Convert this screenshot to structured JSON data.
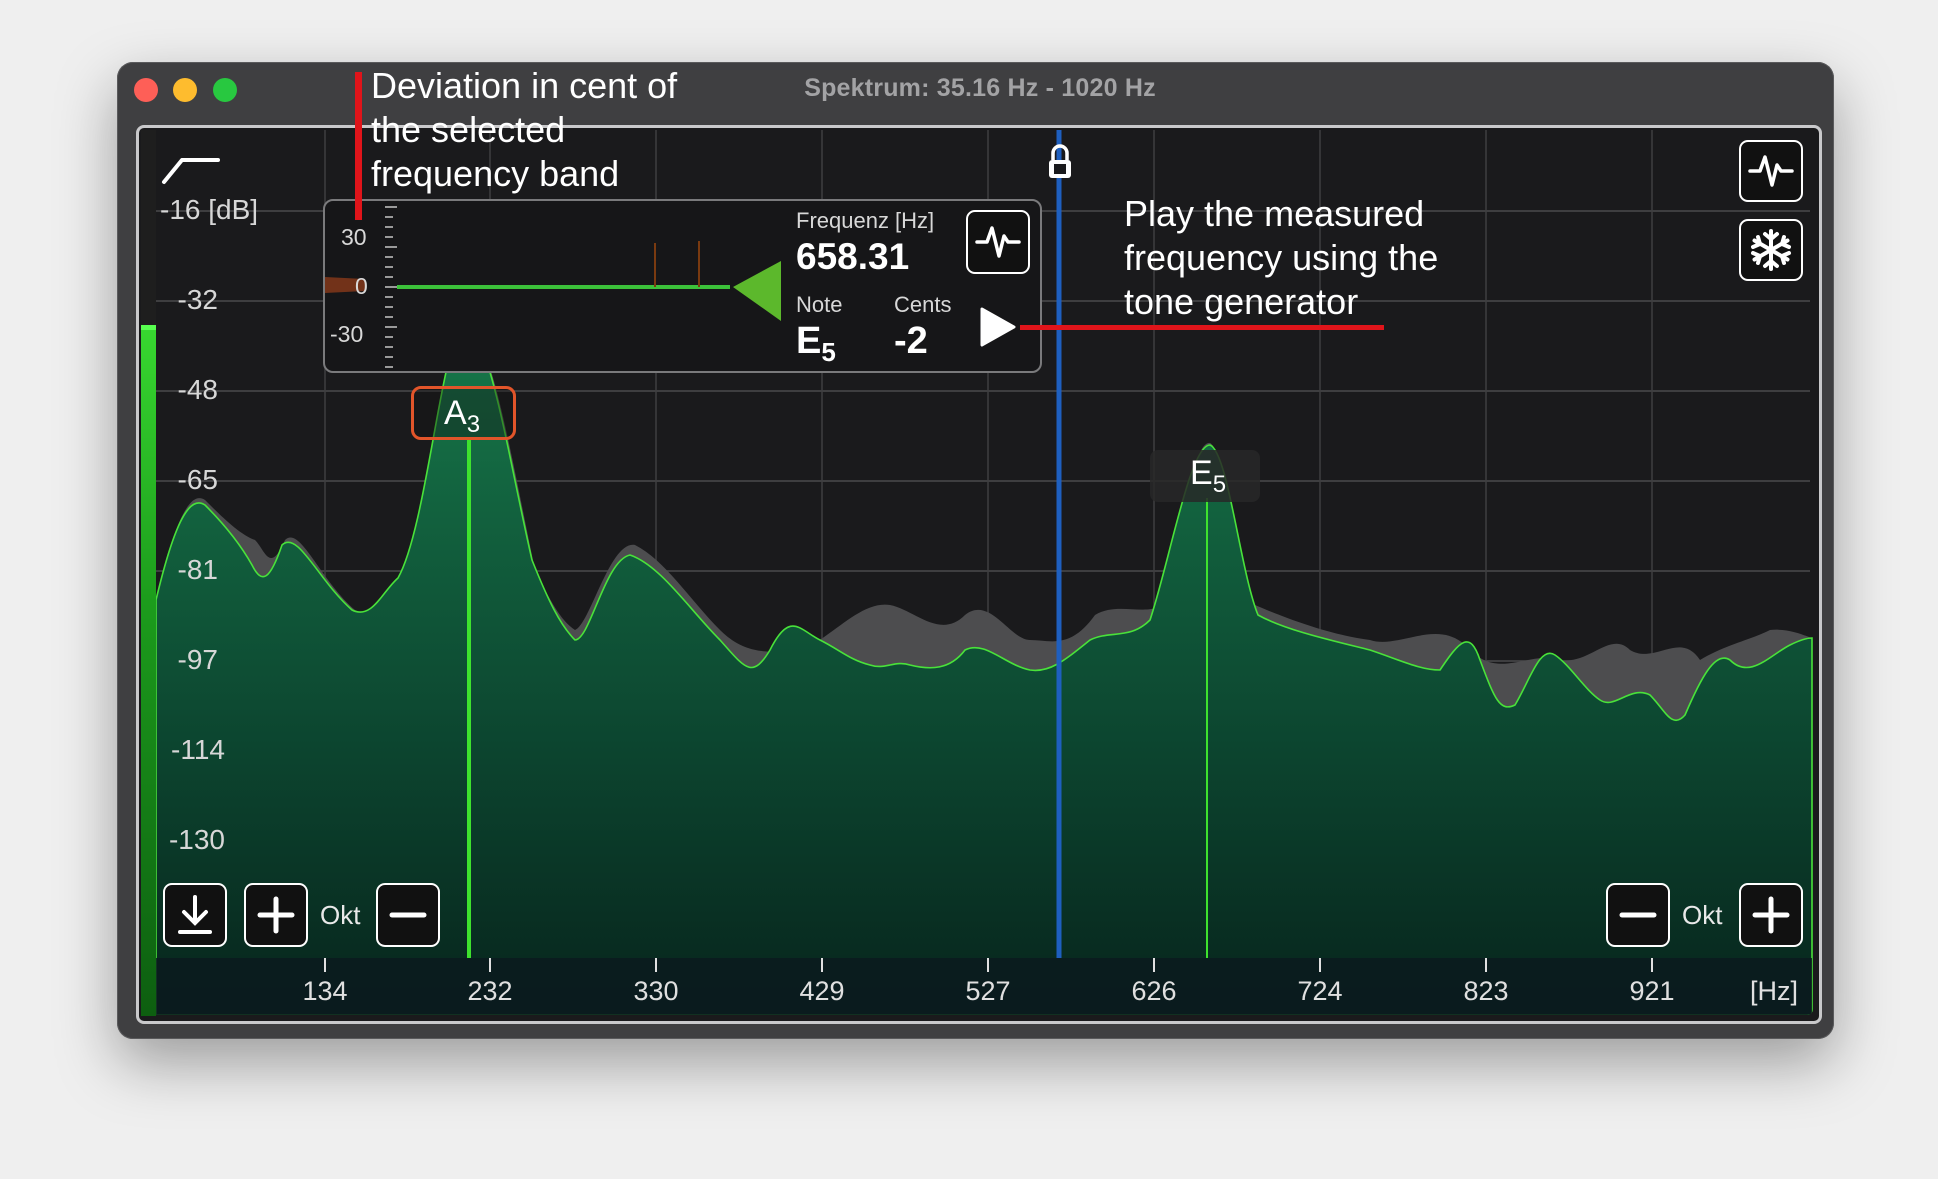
{
  "window": {
    "title": "Spektrum: 35.16  Hz - 1020  Hz"
  },
  "axes": {
    "y_unit": "-16 [dB]",
    "y_ticks": [
      "-32",
      "-48",
      "-65",
      "-81",
      "-97",
      "-114",
      "-130"
    ],
    "x_ticks": [
      "134",
      "232",
      "330",
      "429",
      "527",
      "626",
      "724",
      "823",
      "921"
    ],
    "x_unit": "[Hz]"
  },
  "tuner": {
    "cent_scale": [
      "30",
      "0",
      "-30"
    ],
    "freq_label": "Frequenz [Hz]",
    "freq_value": "658.31",
    "note_label": "Note",
    "note_name": "E",
    "note_octave": "5",
    "cents_label": "Cents",
    "cents_value": "-2"
  },
  "peaks": [
    {
      "name": "A",
      "octave": "3",
      "selected": true
    },
    {
      "name": "E",
      "octave": "5",
      "selected": false
    }
  ],
  "controls": {
    "left_okt_label": "Okt",
    "right_okt_label": "Okt"
  },
  "annotations": {
    "deviation": [
      "Deviation in cent of",
      "the selected",
      "frequency band"
    ],
    "play": [
      "Play the measured",
      "frequency using the",
      "tone generator"
    ]
  },
  "icons": {
    "filter": "filter-slope-icon",
    "lock": "lock-icon",
    "waveform": "pulse-waveform-icon",
    "freeze": "snowflake-icon",
    "download": "download-icon",
    "plus": "plus-icon",
    "minus": "minus-icon",
    "play": "play-icon"
  },
  "colors": {
    "spectrum_fill": "#0f5a3a",
    "spectrum_line": "#49e23a",
    "ghost_fill": "#4a4a4a",
    "cursor": "#1e5fbf",
    "annotation_red": "#e0141a",
    "selected_peak": "#e2552a"
  }
}
